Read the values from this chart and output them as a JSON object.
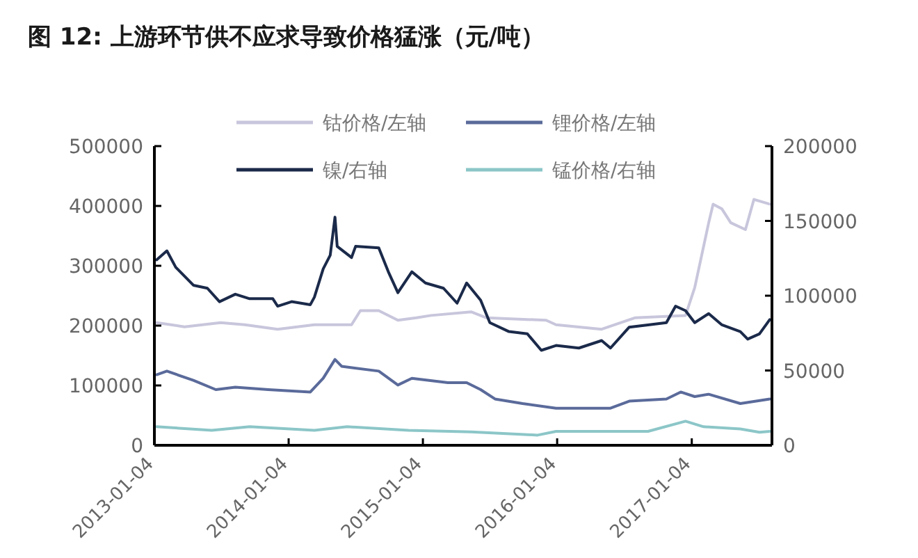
{
  "chart_data": {
    "type": "line",
    "title": "图 12: 上游环节供不应求导致价格猛涨（元/吨）",
    "xlim": [
      "2013-01-04",
      "2017-08-10"
    ],
    "xticks": [
      "2013-01-04",
      "2014-01-04",
      "2015-01-04",
      "2016-01-04",
      "2017-01-04"
    ],
    "ylim": [
      0,
      500000
    ],
    "yticks": [
      0,
      100000,
      200000,
      300000,
      400000,
      500000
    ],
    "y2lim": [
      0,
      200000
    ],
    "y2ticks": [
      0,
      50000,
      100000,
      150000,
      200000
    ],
    "legend": "top",
    "grid": false,
    "series": [
      {
        "name": "钴价格/左轴",
        "color": "#c8c6dc",
        "axis": "y",
        "x": [
          "2013-01-10",
          "2013-03-27",
          "2013-07-03",
          "2013-09-07",
          "2013-12-05",
          "2014-03-15",
          "2014-06-24",
          "2014-07-18",
          "2014-09-06",
          "2014-10-28",
          "2014-12-17",
          "2015-01-26",
          "2015-05-15",
          "2015-06-26",
          "2015-12-05",
          "2016-01-01",
          "2016-05-04",
          "2016-08-02",
          "2016-12-18",
          "2017-01-12",
          "2017-02-19",
          "2017-03-03",
          "2017-03-27",
          "2017-04-20",
          "2017-05-30",
          "2017-06-22",
          "2017-08-04"
        ],
        "values": [
          205000,
          198000,
          205000,
          201500,
          194000,
          201500,
          201500,
          225000,
          225000,
          209000,
          213000,
          217000,
          223000,
          213000,
          209000,
          201500,
          194000,
          213000,
          217000,
          263500,
          372000,
          403000,
          395000,
          372000,
          360500,
          411000,
          403000
        ]
      },
      {
        "name": "锂价格/左轴",
        "color": "#5a6a9a",
        "axis": "y",
        "x": [
          "2013-01-10",
          "2013-02-07",
          "2013-04-20",
          "2013-06-20",
          "2013-08-12",
          "2013-11-10",
          "2014-03-04",
          "2014-04-08",
          "2014-05-10",
          "2014-05-28",
          "2014-09-06",
          "2014-10-28",
          "2014-12-05",
          "2015-03-13",
          "2015-05-03",
          "2015-06-10",
          "2015-07-19",
          "2015-10-02",
          "2016-01-01",
          "2016-05-28",
          "2016-07-18",
          "2016-10-27",
          "2016-12-05",
          "2017-01-12",
          "2017-02-19",
          "2017-05-16",
          "2017-08-04"
        ],
        "values": [
          118000,
          124000,
          108500,
          93000,
          97000,
          93000,
          89000,
          112000,
          143500,
          132000,
          124000,
          100700,
          112000,
          104600,
          104600,
          93000,
          77400,
          69800,
          62000,
          62000,
          73700,
          77400,
          89000,
          81400,
          85300,
          69800,
          77400
        ]
      },
      {
        "name": "镍/右轴",
        "color": "#1b2a4a",
        "axis": "y2",
        "x": [
          "2013-01-10",
          "2013-02-07",
          "2013-03-03",
          "2013-04-20",
          "2013-05-28",
          "2013-06-30",
          "2013-08-12",
          "2013-09-20",
          "2013-11-22",
          "2013-12-05",
          "2014-01-12",
          "2014-03-04",
          "2014-03-15",
          "2014-04-08",
          "2014-04-27",
          "2014-05-10",
          "2014-05-16",
          "2014-06-24",
          "2014-07-05",
          "2014-09-06",
          "2014-10-02",
          "2014-10-28",
          "2014-12-05",
          "2015-01-11",
          "2015-03-01",
          "2015-04-07",
          "2015-05-03",
          "2015-06-10",
          "2015-07-05",
          "2015-08-26",
          "2015-10-15",
          "2015-11-22",
          "2016-01-01",
          "2016-03-03",
          "2016-05-04",
          "2016-05-28",
          "2016-07-18",
          "2016-09-07",
          "2016-10-27",
          "2016-11-21",
          "2016-12-18",
          "2017-01-12",
          "2017-02-19",
          "2017-03-27",
          "2017-05-16",
          "2017-06-05",
          "2017-07-07",
          "2017-08-04"
        ],
        "values": [
          124000,
          130000,
          119000,
          107000,
          105000,
          96000,
          101000,
          98000,
          98000,
          93000,
          96000,
          94000,
          99000,
          118000,
          127000,
          152500,
          133000,
          125500,
          133000,
          132000,
          116000,
          102000,
          116000,
          108500,
          105000,
          95000,
          108500,
          97000,
          82000,
          76000,
          74500,
          63500,
          66700,
          65000,
          70000,
          65000,
          79000,
          80500,
          82000,
          93000,
          90000,
          82000,
          88000,
          80500,
          76000,
          71000,
          74500,
          84000
        ]
      },
      {
        "name": "锰价格/右轴",
        "color": "#8cc6c8",
        "axis": "y2",
        "x": [
          "2013-01-10",
          "2013-06-09",
          "2013-09-20",
          "2014-03-15",
          "2014-06-12",
          "2014-11-26",
          "2015-05-15",
          "2015-11-12",
          "2016-01-01",
          "2016-09-07",
          "2016-12-18",
          "2017-02-05",
          "2017-05-16",
          "2017-07-07",
          "2017-08-04"
        ],
        "values": [
          12400,
          10000,
          12400,
          10000,
          12400,
          10000,
          9000,
          6800,
          9300,
          9300,
          16100,
          12400,
          10900,
          8700,
          9300
        ]
      }
    ]
  }
}
